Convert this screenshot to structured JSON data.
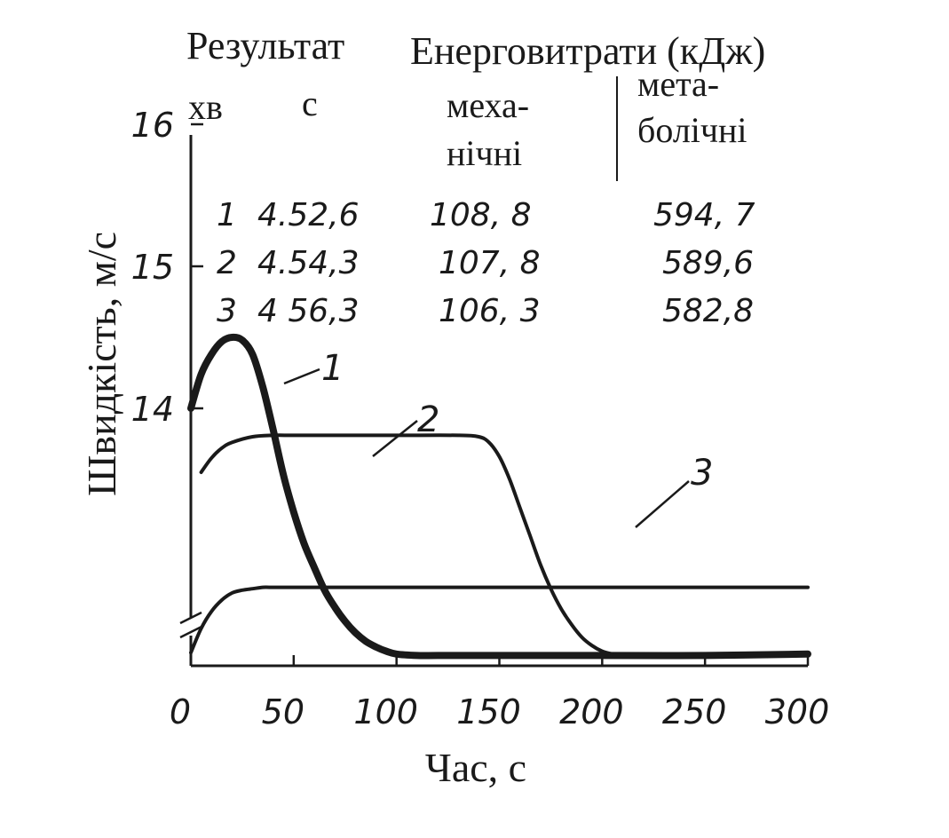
{
  "chart_data": {
    "type": "line",
    "title": "",
    "xlabel": "Час, с",
    "ylabel": "Швидкість, м/с",
    "xlim": [
      0,
      300
    ],
    "ylim": [
      12.2,
      16
    ],
    "y_axis_break": true,
    "x_ticks": [
      "0",
      "50",
      "100",
      "150",
      "200",
      "250",
      "300"
    ],
    "y_ticks": [
      "14",
      "15",
      "16"
    ],
    "grid": false,
    "legend": "none",
    "series": [
      {
        "name": "1",
        "line_weight": "bold",
        "x": [
          0,
          5,
          10,
          15,
          20,
          25,
          30,
          35,
          40,
          45,
          50,
          55,
          60,
          65,
          70,
          75,
          80,
          85,
          90,
          95,
          100,
          110,
          120,
          140,
          170,
          200,
          250,
          300
        ],
        "y": [
          14.0,
          14.24,
          14.38,
          14.47,
          14.5,
          14.48,
          14.38,
          14.15,
          13.85,
          13.53,
          13.27,
          13.05,
          12.88,
          12.72,
          12.6,
          12.5,
          12.42,
          12.36,
          12.32,
          12.29,
          12.27,
          12.26,
          12.26,
          12.26,
          12.26,
          12.26,
          12.26,
          12.27
        ]
      },
      {
        "name": "2",
        "x": [
          5,
          10,
          15,
          20,
          30,
          40,
          50,
          70,
          100,
          130,
          140,
          145,
          150,
          155,
          160,
          165,
          170,
          175,
          180,
          185,
          190,
          195,
          200,
          205,
          210,
          250,
          300
        ],
        "y": [
          13.55,
          13.65,
          13.72,
          13.76,
          13.8,
          13.81,
          13.81,
          13.81,
          13.81,
          13.81,
          13.8,
          13.76,
          13.66,
          13.5,
          13.3,
          13.1,
          12.9,
          12.73,
          12.59,
          12.48,
          12.39,
          12.33,
          12.29,
          12.27,
          12.26,
          12.26,
          12.27
        ]
      },
      {
        "name": "3",
        "x": [
          0,
          5,
          10,
          15,
          20,
          25,
          30,
          35,
          40,
          60,
          100,
          150,
          200,
          250,
          300
        ],
        "y": [
          12.28,
          12.45,
          12.57,
          12.65,
          12.7,
          12.72,
          12.73,
          12.74,
          12.74,
          12.74,
          12.74,
          12.74,
          12.74,
          12.74,
          12.74
        ]
      }
    ],
    "curve_labels": [
      "1",
      "2",
      "3"
    ],
    "table": {
      "result_header": "Результат",
      "energy_header": "Енерговитрати (кДж)",
      "columns": [
        "хв",
        "с",
        "меха-",
        "нічні",
        "мета-",
        "болічні"
      ],
      "rows": [
        {
          "num": "1",
          "time": "4.52,6",
          "mech": "108, 8",
          "metab": "594, 7"
        },
        {
          "num": "2",
          "time": "4.54,3",
          "mech": "107, 8",
          "metab": "589,6"
        },
        {
          "num": "3",
          "time": "4 56,3",
          "mech": "106, 3",
          "metab": "582,8"
        }
      ]
    }
  }
}
